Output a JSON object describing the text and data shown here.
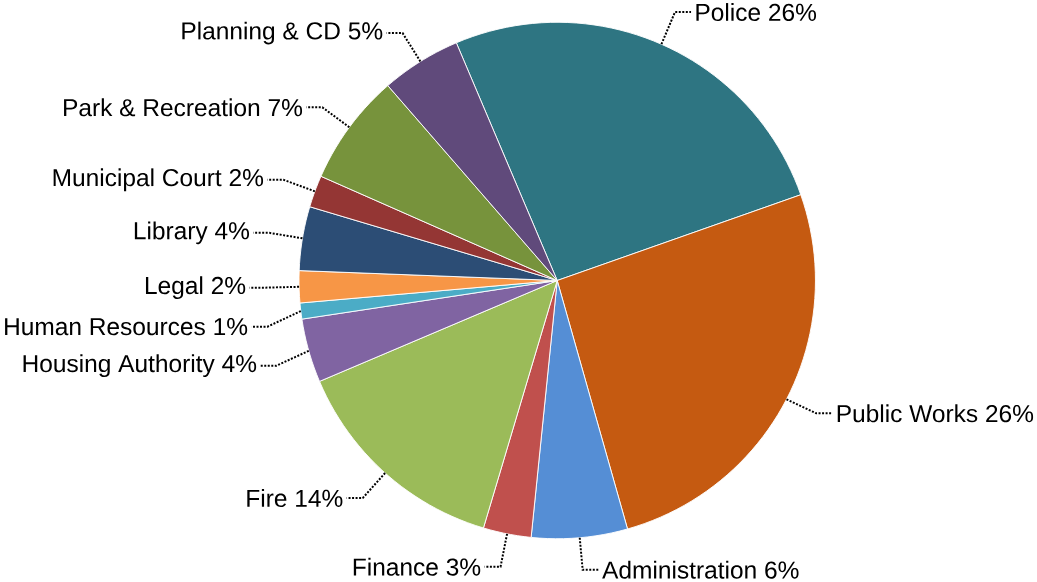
{
  "chart_data": {
    "type": "pie",
    "categories": [
      "Police",
      "Public Works",
      "Administration",
      "Finance",
      "Fire",
      "Housing Authority",
      "Human Resources",
      "Legal",
      "Library",
      "Municipal Court",
      "Park & Recreation",
      "Planning & CD"
    ],
    "values": [
      26,
      26,
      6,
      3,
      14,
      4,
      1,
      2,
      4,
      2,
      7,
      5
    ],
    "value_labels": [
      "26%",
      "26%",
      "6%",
      "3%",
      "14%",
      "4%",
      "1%",
      "2%",
      "4%",
      "2%",
      "7%",
      "5%"
    ],
    "colors": [
      "#2e7582",
      "#c55a11",
      "#558ed5",
      "#c0504d",
      "#9bbb59",
      "#8064a2",
      "#4bacc6",
      "#f79646",
      "#2c4d75",
      "#943634",
      "#77933c",
      "#604a7b"
    ]
  }
}
